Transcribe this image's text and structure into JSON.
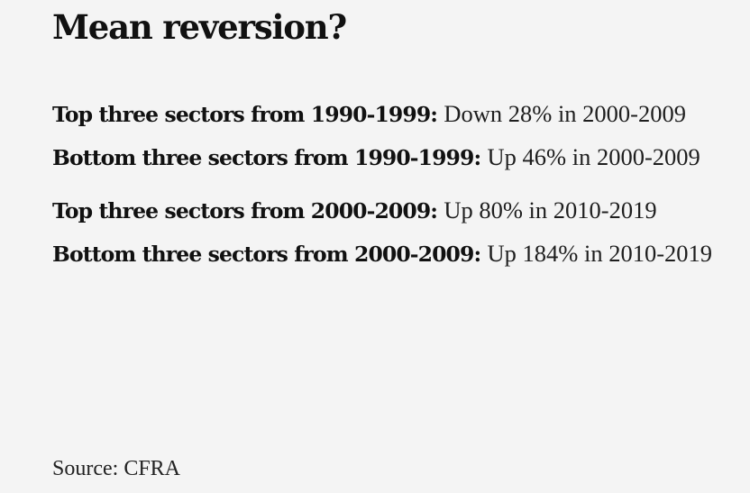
{
  "title": "Mean reversion?",
  "stats": [
    {
      "label": "Top three sectors from 1990-1999:",
      "value": "Down 28% in 2000-2009"
    },
    {
      "label": "Bottom three sectors from 1990-1999:",
      "value": "Up 46% in 2000-2009"
    },
    {
      "label": "Top three sectors from 2000-2009:",
      "value": "Up 80% in 2010-2019"
    },
    {
      "label": "Bottom three sectors from 2000-2009:",
      "value": "Up 184% in 2010-2019"
    }
  ],
  "source": "Source: CFRA"
}
